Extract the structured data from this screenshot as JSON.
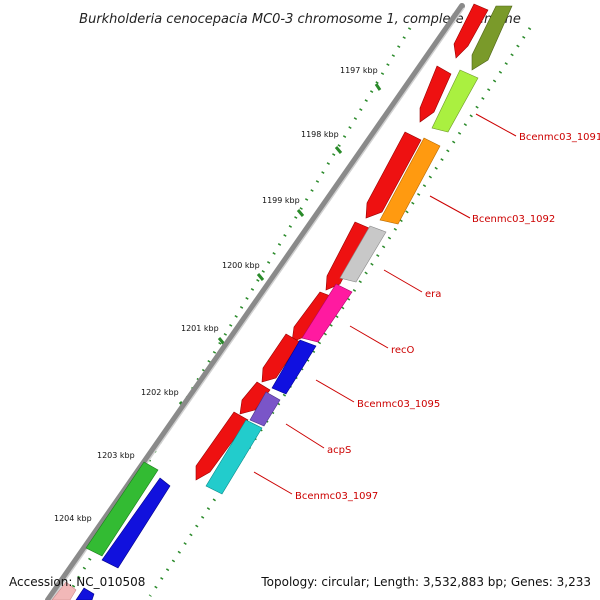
{
  "title": "Burkholderia cenocepacia MC0-3 chromosome 1, complete genome",
  "ticks": [
    "1197 kbp",
    "1198 kbp",
    "1199 kbp",
    "1200 kbp",
    "1201 kbp",
    "1202 kbp",
    "1203 kbp",
    "1204 kbp"
  ],
  "gene_labels": [
    "Bcenmc03_1091",
    "Bcenmc03_1092",
    "era",
    "recO",
    "Bcenmc03_1095",
    "acpS",
    "Bcenmc03_1097"
  ],
  "footer": {
    "accession": "Accession: NC_010508",
    "topology": "Topology: circular; Length: 3,532,883 bp; Genes: 3,233"
  },
  "colors": {
    "red": "#ee1111",
    "label": "#cc0000",
    "tick": "#2a8a2a",
    "backbone": "#8a8a8a",
    "genes": [
      "#7a9a2a",
      "#aaf040",
      "#ff9a10",
      "#c8c8c8",
      "#ff1aa0",
      "#1010e0",
      "#7a55c8",
      "#22cccc",
      "#33bb33",
      "#1111dd"
    ]
  }
}
